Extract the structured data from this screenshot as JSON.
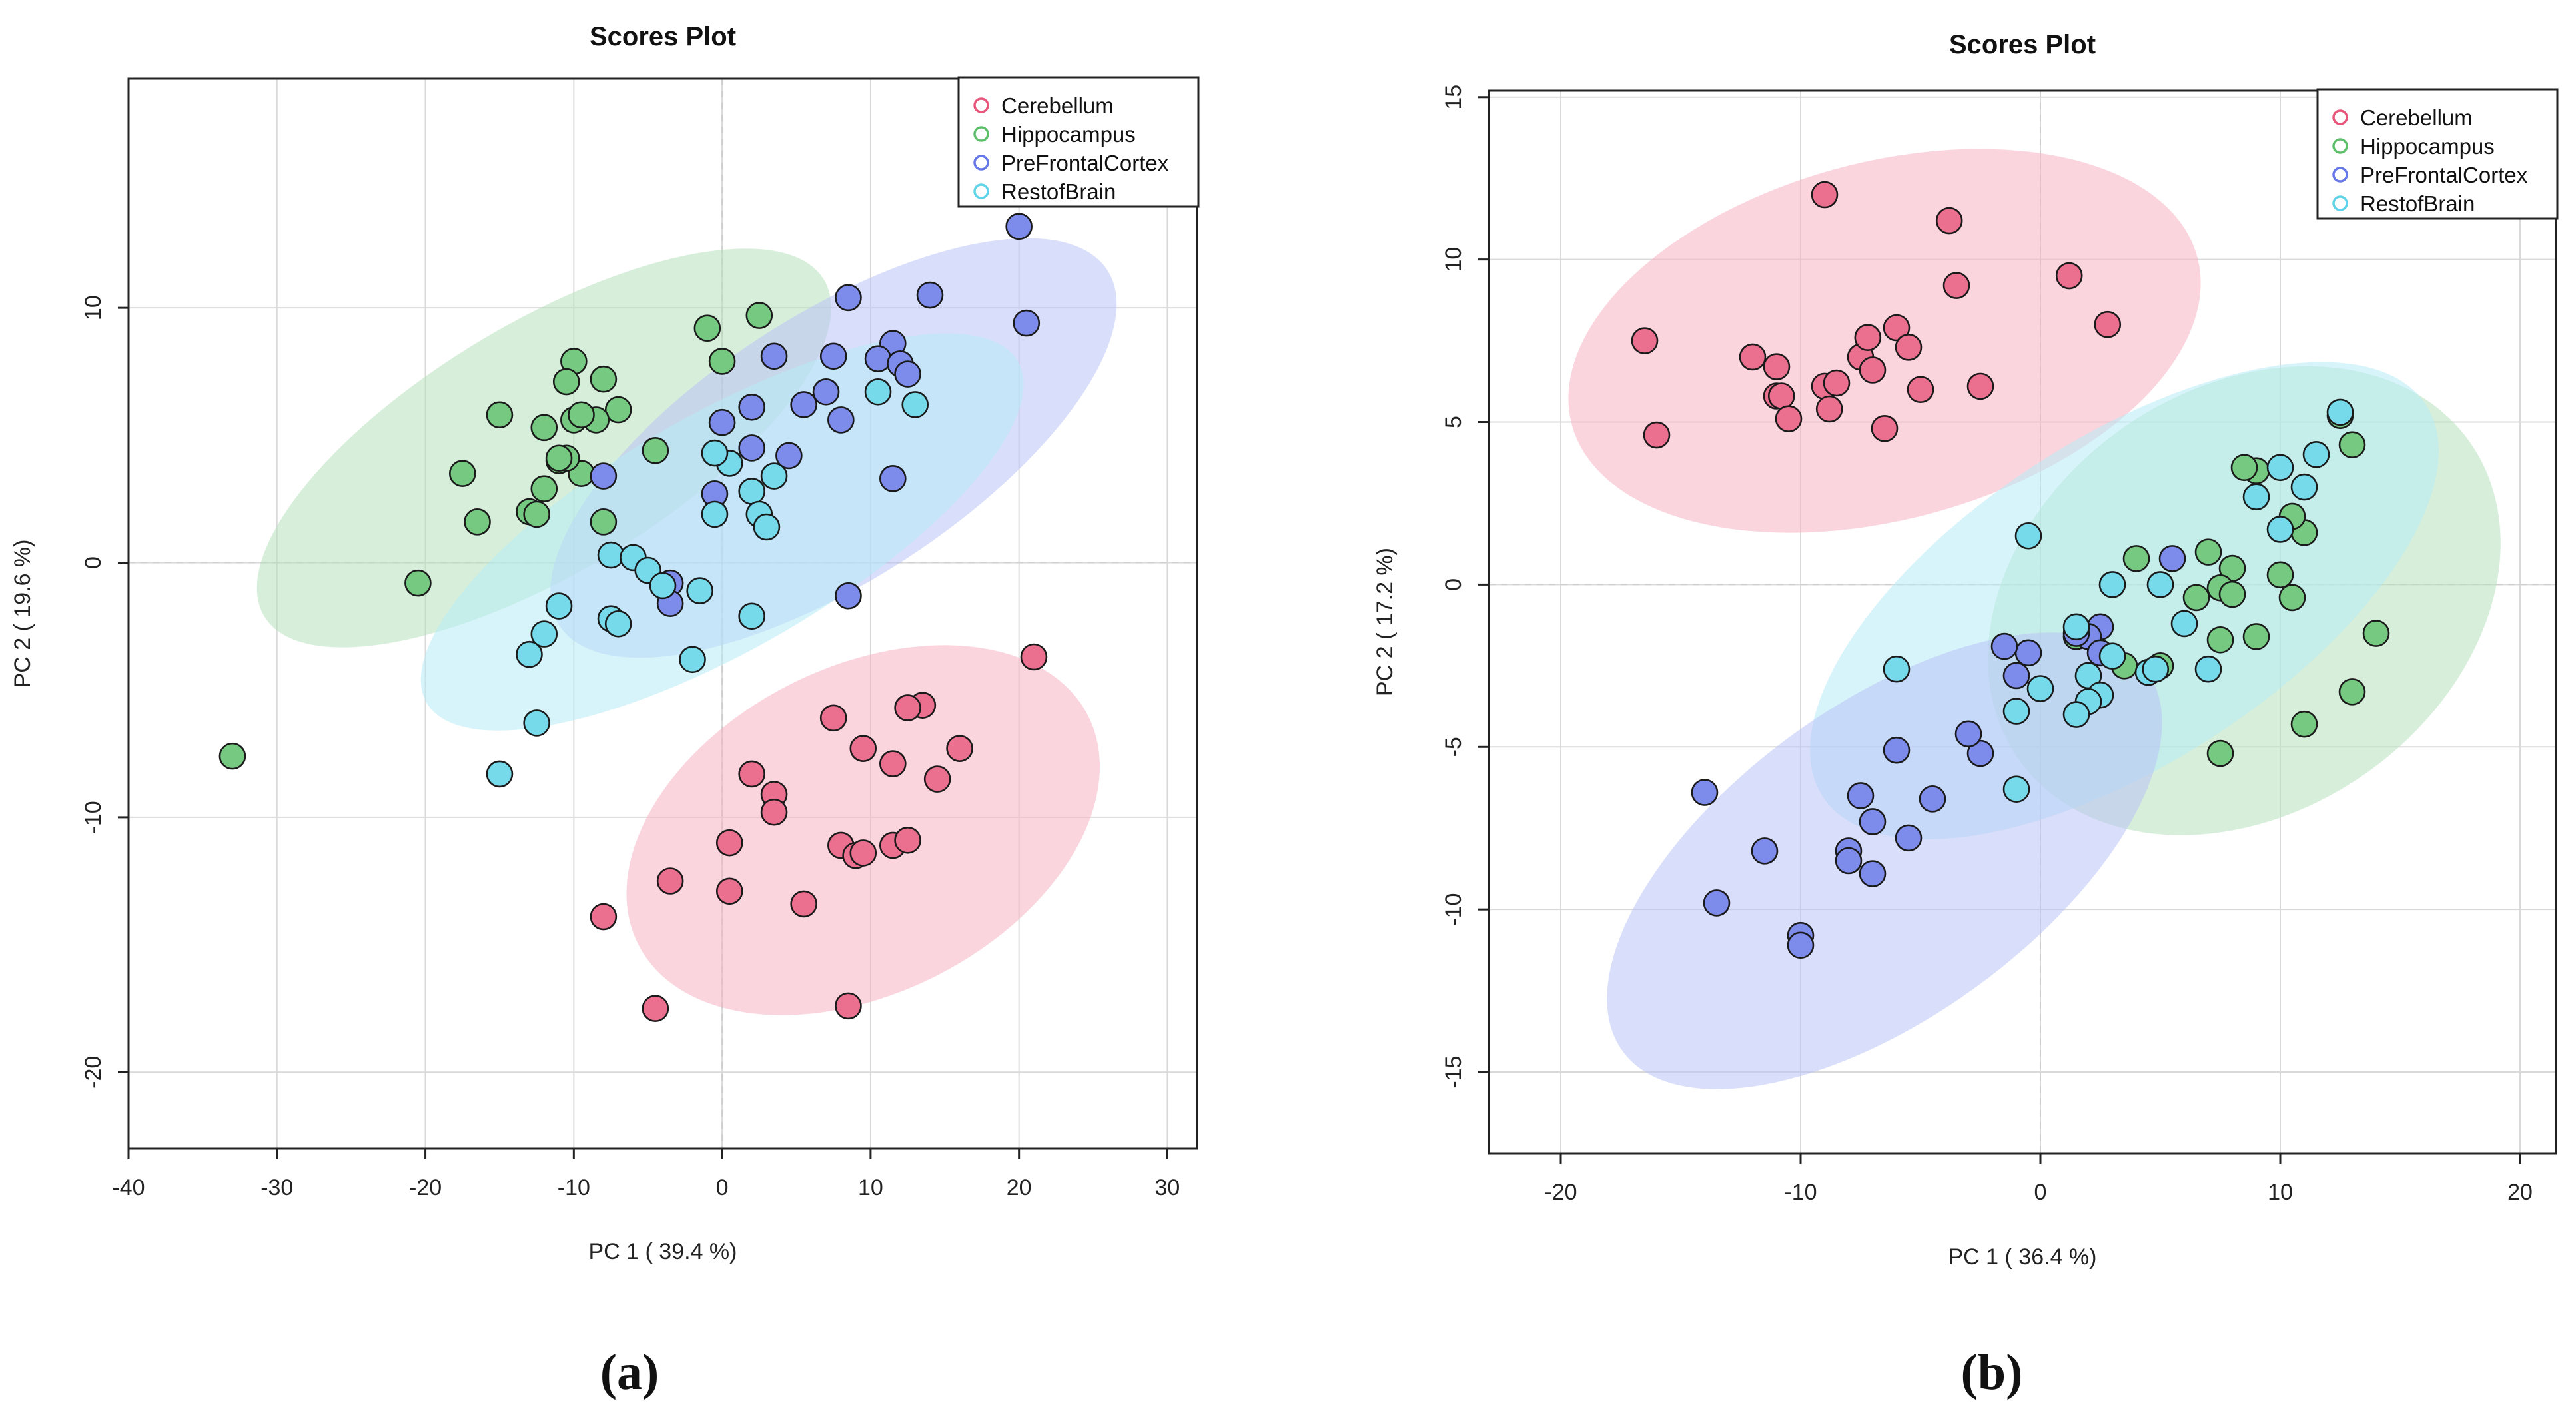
{
  "figure": {
    "panel_labels": [
      "(a)",
      "(b)"
    ]
  },
  "colors": {
    "Cerebellum": "#E8557A",
    "Hippocampus": "#5EBF6A",
    "PreFrontalCortex": "#6677E8",
    "RestofBrain": "#5FD3E8"
  },
  "chart_data": [
    {
      "type": "scatter",
      "title": "Scores Plot",
      "xlabel": "PC 1 ( 39.4 %)",
      "ylabel": "PC 2 ( 19.6 %)",
      "xlim": [
        -40,
        32
      ],
      "ylim": [
        -23,
        19
      ],
      "xticks": [
        -40,
        -30,
        -20,
        -10,
        0,
        10,
        20,
        30
      ],
      "yticks": [
        -20,
        -10,
        0,
        10
      ],
      "grid": true,
      "legend": "top-right",
      "legend_entries": [
        "Cerebellum",
        "Hippocampus",
        "PreFrontalCortex",
        "RestofBrain"
      ],
      "ellipses": [
        {
          "group": "Hippocampus",
          "cx": -12,
          "cy": 4.5,
          "rx": 22,
          "ry": 4.9,
          "angle_deg": 31
        },
        {
          "group": "PreFrontalCortex",
          "cx": 7.5,
          "cy": 4.5,
          "rx": 22,
          "ry": 5.2,
          "angle_deg": 33
        },
        {
          "group": "RestofBrain",
          "cx": 0,
          "cy": 1.2,
          "rx": 23,
          "ry": 4.6,
          "angle_deg": 30
        },
        {
          "group": "Cerebellum",
          "cx": 9.5,
          "cy": -10.5,
          "rx": 17,
          "ry": 6.4,
          "angle_deg": 27
        }
      ],
      "series": [
        {
          "name": "Cerebellum",
          "x": [
            21,
            16,
            13.5,
            12.5,
            14.5,
            11.5,
            9.5,
            7.5,
            3.5,
            3.5,
            2,
            8,
            9,
            9.5,
            11.5,
            12.5,
            0.5,
            0.5,
            -3.5,
            -8,
            5.5,
            -4.5,
            8.5
          ],
          "y": [
            -3.7,
            -7.3,
            -5.6,
            -5.7,
            -8.5,
            -7.9,
            -7.3,
            -6.1,
            -9.1,
            -9.8,
            -8.3,
            -11.1,
            -11.5,
            -11.4,
            -11.1,
            -10.9,
            -11,
            -12.9,
            -12.5,
            -13.9,
            -13.4,
            -17.5,
            -17.4
          ]
        },
        {
          "name": "Hippocampus",
          "x": [
            2.5,
            -1,
            -10,
            -10.5,
            -8,
            -10,
            -7,
            -15,
            -12,
            -8.5,
            -9.5,
            -11,
            -4.5,
            -17.5,
            -12,
            -10.5,
            -13,
            -12.5,
            -8,
            -16.5,
            -20.5,
            -33,
            0,
            -11,
            -9.5
          ],
          "y": [
            9.7,
            9.2,
            7.9,
            7.1,
            7.2,
            5.6,
            6,
            5.8,
            5.3,
            5.6,
            3.5,
            4,
            4.4,
            3.5,
            2.9,
            4.1,
            2,
            1.9,
            1.6,
            1.6,
            -0.8,
            -7.6,
            7.9,
            4.1,
            5.8
          ]
        },
        {
          "name": "PreFrontalCortex",
          "x": [
            20,
            20.5,
            14,
            8.5,
            11.5,
            10.5,
            12,
            12.5,
            7.5,
            3.5,
            7,
            2,
            5.5,
            0,
            8,
            2,
            4.5,
            -8,
            -0.5,
            11.5,
            -3.5,
            -3.5,
            8.5
          ],
          "y": [
            13.2,
            9.4,
            10.5,
            10.4,
            8.6,
            8,
            7.8,
            7.4,
            8.1,
            8.1,
            6.7,
            6.1,
            6.2,
            5.5,
            5.6,
            4.5,
            4.2,
            3.4,
            2.7,
            3.3,
            -0.8,
            -1.6,
            -1.3
          ]
        },
        {
          "name": "RestofBrain",
          "x": [
            10.5,
            13,
            0.5,
            3.5,
            2,
            -0.5,
            2.5,
            3,
            -0.5,
            -7.5,
            -6,
            -5,
            -4,
            -1.5,
            -11,
            -7.5,
            -7,
            -12,
            -13,
            -2,
            2,
            -12.5,
            -15
          ],
          "y": [
            6.7,
            6.2,
            3.9,
            3.4,
            2.8,
            1.9,
            1.9,
            1.4,
            4.3,
            0.3,
            0.2,
            -0.3,
            -0.9,
            -1.1,
            -1.7,
            -2.2,
            -2.4,
            -2.8,
            -3.6,
            -3.8,
            -2.1,
            -6.3,
            -8.3
          ]
        }
      ]
    },
    {
      "type": "scatter",
      "title": "Scores Plot",
      "xlabel": "PC 1 ( 36.4 %)",
      "ylabel": "PC 2 ( 17.2 %)",
      "xlim": [
        -23,
        21.5
      ],
      "ylim": [
        -17.5,
        15.2
      ],
      "xticks": [
        -20,
        -10,
        0,
        10,
        20
      ],
      "yticks": [
        -15,
        -10,
        -5,
        0,
        5,
        10,
        15
      ],
      "grid": true,
      "legend": "top-right",
      "legend_entries": [
        "Cerebellum",
        "Hippocampus",
        "PreFrontalCortex",
        "RestofBrain"
      ],
      "ellipses": [
        {
          "group": "Cerebellum",
          "cx": -6.5,
          "cy": 7.5,
          "rx": 13.5,
          "ry": 5.5,
          "angle_deg": 15
        },
        {
          "group": "Hippocampus",
          "cx": 8.5,
          "cy": -0.5,
          "rx": 11.5,
          "ry": 6.5,
          "angle_deg": 35
        },
        {
          "group": "RestofBrain",
          "cx": 3.5,
          "cy": -0.5,
          "rx": 15,
          "ry": 5,
          "angle_deg": 33
        },
        {
          "group": "PreFrontalCortex",
          "cx": -6.5,
          "cy": -8.5,
          "rx": 13.5,
          "ry": 4.8,
          "angle_deg": 36
        }
      ],
      "series": [
        {
          "name": "Cerebellum",
          "x": [
            -9,
            -3.8,
            -16.5,
            -16,
            -12,
            -11,
            -11,
            -10.8,
            -10.5,
            -9,
            -8.5,
            -8.8,
            -7.5,
            -7,
            -7.2,
            -6,
            -5.5,
            -5,
            -6.5,
            -2.5,
            1.2,
            2.8,
            -3.5
          ],
          "y": [
            12,
            11.2,
            7.5,
            4.6,
            7,
            6.7,
            5.8,
            5.8,
            5.1,
            6.1,
            6.2,
            5.4,
            7,
            6.6,
            7.6,
            7.9,
            7.3,
            6,
            4.8,
            6.1,
            9.5,
            8,
            9.2
          ]
        },
        {
          "name": "Hippocampus",
          "x": [
            13,
            12.5,
            11,
            10.5,
            9,
            8.5,
            8,
            7,
            7.5,
            4,
            10,
            10.5,
            5,
            7.5,
            9,
            8,
            14,
            13,
            11,
            7.5,
            3.5,
            1.5,
            6.5
          ],
          "y": [
            4.3,
            5.2,
            1.6,
            2.1,
            3.5,
            3.6,
            0.5,
            1,
            -0.1,
            0.8,
            0.3,
            -0.4,
            -2.5,
            -1.7,
            -1.6,
            -0.3,
            -1.5,
            -3.3,
            -4.3,
            -5.2,
            -2.5,
            -1.6,
            -0.4
          ]
        },
        {
          "name": "PreFrontalCortex",
          "x": [
            5.5,
            2.5,
            2,
            -0.5,
            -1.5,
            -1,
            1.5,
            -2.5,
            -3,
            -6,
            -5.5,
            -4.5,
            -7.5,
            -7,
            -8,
            -8,
            -11.5,
            -7,
            -13.5,
            -10,
            -10,
            -14,
            2.5
          ],
          "y": [
            0.8,
            -1.3,
            -1.6,
            -2.1,
            -1.9,
            -2.8,
            -1.5,
            -5.2,
            -4.6,
            -5.1,
            -7.8,
            -6.6,
            -6.5,
            -7.3,
            -8.2,
            -8.5,
            -8.2,
            -8.9,
            -9.8,
            -10.8,
            -11.1,
            -6.4,
            -2.1
          ]
        },
        {
          "name": "RestofBrain",
          "x": [
            12.5,
            11.5,
            11,
            10,
            9,
            10,
            6,
            5,
            4.5,
            3,
            3,
            1.5,
            2,
            2.5,
            2,
            0,
            -1,
            -1,
            -0.5,
            -6,
            7,
            1.5,
            4.8
          ],
          "y": [
            5.3,
            4,
            3,
            3.6,
            2.7,
            1.7,
            -1.2,
            0,
            -2.7,
            -2.2,
            0,
            -1.3,
            -2.8,
            -3.4,
            -3.6,
            -3.2,
            -3.9,
            -6.3,
            1.5,
            -2.6,
            -2.6,
            -4,
            -2.6
          ]
        }
      ]
    }
  ]
}
